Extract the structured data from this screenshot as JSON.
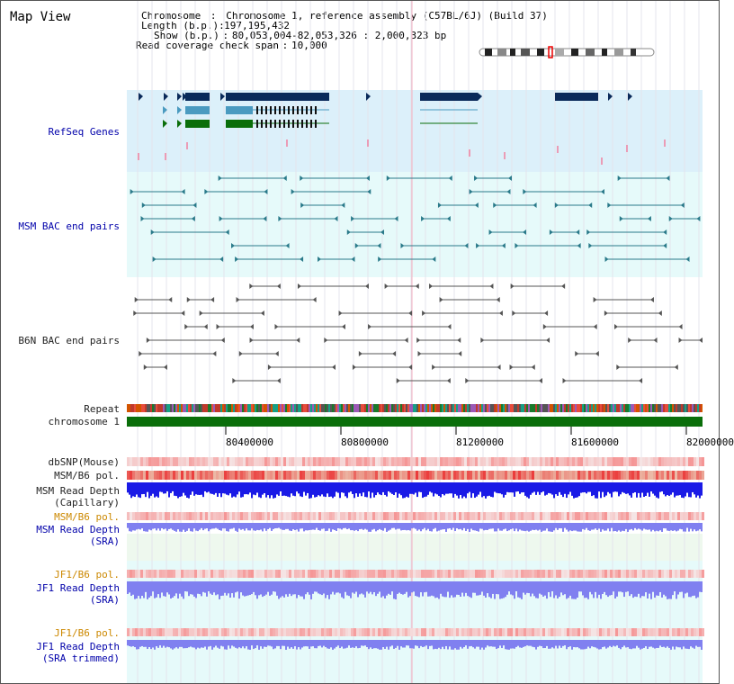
{
  "page": {
    "title": "Map View"
  },
  "info": {
    "chromosome_label": "Chromosome",
    "chromosome_value": "Chromosome 1, reference assembly (C57BL/6J) (Build 37)",
    "length_label": "Length (b.p.)",
    "length_value": "197,195,432",
    "show_label": "Show (b.p.)",
    "show_value": "80,053,004-82,053,326 : 2,000,323 bp",
    "coverage_label": "Read coverage check span",
    "coverage_value": "10,000"
  },
  "tracks": {
    "refseq": "RefSeq Genes",
    "msm_bac": "MSM BAC end pairs",
    "b6n_bac": "B6N BAC end pairs",
    "repeat": "Repeat",
    "chromosome": "chromosome 1",
    "dbsnp": "dbSNP(Mouse)",
    "msm_pol": "MSM/B6 pol.",
    "msm_depth_cap_1": "MSM Read Depth",
    "msm_depth_cap_2": "(Capillary)",
    "msm_pol_sra": "MSM/B6 pol.",
    "msm_depth_sra_1": "MSM Read Depth",
    "msm_depth_sra_2": "(SRA)",
    "jf1_pol": "JF1/B6 pol.",
    "jf1_depth_1": "JF1 Read Depth",
    "jf1_depth_2": "(SRA)",
    "jf1_pol_trim": "JF1/B6 pol.",
    "jf1_trim_1": "JF1 Read Depth",
    "jf1_trim_2": "(SRA trimmed)"
  },
  "axis": {
    "ticks": [
      "80400000",
      "80800000",
      "81200000",
      "81600000",
      "82000000"
    ]
  },
  "colors": {
    "light_blue_bg": "#dcf0fa",
    "cyan_bg": "#e6fafa",
    "gene_dark": "#0a2a5a",
    "gene_mid": "#4a9ac0",
    "gene_green": "#0a6e0a",
    "msm_bac": "#2a7a8a",
    "b6n_bac": "#555555",
    "chrom_green": "#0a6e0a",
    "depth_blue": "#1a1ae6",
    "depth_light": "#8080f0"
  }
}
